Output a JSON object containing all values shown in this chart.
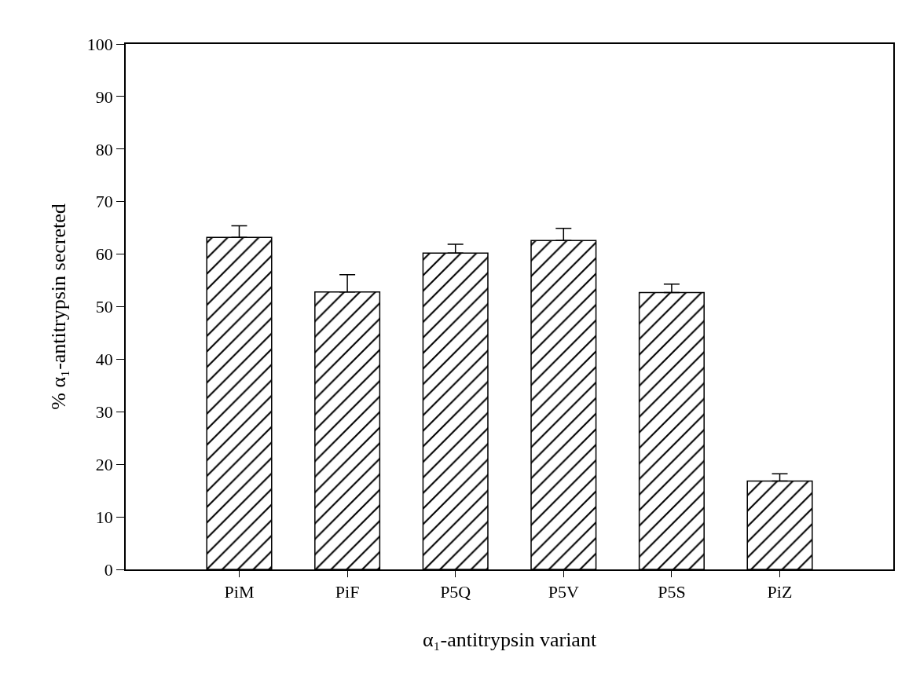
{
  "chart_data": {
    "type": "bar",
    "xlabel": "α₁-antitrypsin variant",
    "ylabel": "% α₁-antitrypsin secreted",
    "categories": [
      "PiM",
      "PiF",
      "P5Q",
      "P5V",
      "P5S",
      "PiZ"
    ],
    "values": [
      63.2,
      52.8,
      60.2,
      62.6,
      52.7,
      16.8
    ],
    "errors": [
      2.2,
      3.3,
      1.7,
      2.3,
      1.6,
      1.4
    ],
    "color": "#000000",
    "ylim": [
      0,
      100
    ],
    "yticks": [
      0,
      10,
      20,
      30,
      40,
      50,
      60,
      70,
      80,
      90,
      100
    ]
  }
}
